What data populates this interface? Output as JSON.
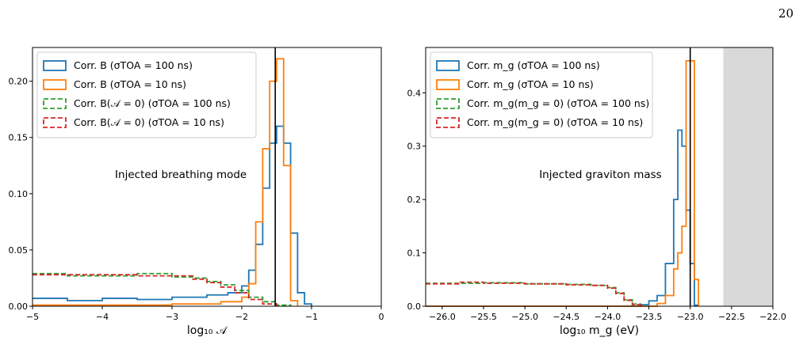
{
  "page_number": "20",
  "chart_data": [
    {
      "type": "histogram",
      "xlabel": "log₁₀ 𝒜",
      "xlim": [
        -5,
        0
      ],
      "ylim": [
        0,
        0.23
      ],
      "x_ticks": [
        "−5",
        "−4",
        "−3",
        "−2",
        "−1",
        "0"
      ],
      "y_ticks": [
        "0.00",
        "0.05",
        "0.10",
        "0.15",
        "0.20"
      ],
      "x_tick_values": [
        -5,
        -4,
        -3,
        -2,
        -1,
        0
      ],
      "y_tick_values": [
        0,
        0.05,
        0.1,
        0.15,
        0.2
      ],
      "annotation": "Injected breathing mode",
      "injected_value": -1.52,
      "legend_placement": "upper-left",
      "series": [
        {
          "name": "Corr. B (σTOA = 100 ns)",
          "color": "#1f77b4",
          "dash": "solid",
          "points": [
            [
              -5,
              0.007
            ],
            [
              -4.5,
              0.005
            ],
            [
              -4.0,
              0.007
            ],
            [
              -3.5,
              0.006
            ],
            [
              -3.0,
              0.008
            ],
            [
              -2.5,
              0.01
            ],
            [
              -2.2,
              0.012
            ],
            [
              -2.0,
              0.018
            ],
            [
              -1.9,
              0.032
            ],
            [
              -1.8,
              0.055
            ],
            [
              -1.7,
              0.105
            ],
            [
              -1.6,
              0.145
            ],
            [
              -1.5,
              0.16
            ],
            [
              -1.4,
              0.145
            ],
            [
              -1.3,
              0.065
            ],
            [
              -1.2,
              0.012
            ],
            [
              -1.1,
              0.002
            ],
            [
              -1.0,
              0.0
            ]
          ]
        },
        {
          "name": "Corr. B (σTOA = 10 ns)",
          "color": "#ff7f0e",
          "dash": "solid",
          "points": [
            [
              -5,
              0.001
            ],
            [
              -4.0,
              0.001
            ],
            [
              -3.0,
              0.002
            ],
            [
              -2.3,
              0.004
            ],
            [
              -2.0,
              0.008
            ],
            [
              -1.9,
              0.02
            ],
            [
              -1.8,
              0.075
            ],
            [
              -1.7,
              0.14
            ],
            [
              -1.6,
              0.2
            ],
            [
              -1.5,
              0.22
            ],
            [
              -1.4,
              0.125
            ],
            [
              -1.3,
              0.005
            ],
            [
              -1.2,
              0.0
            ]
          ]
        },
        {
          "name": "Corr. B(𝒜 = 0) (σTOA = 100 ns)",
          "color": "#2ca02c",
          "dash": "dashed",
          "points": [
            [
              -5,
              0.029
            ],
            [
              -4.5,
              0.027
            ],
            [
              -4.0,
              0.027
            ],
            [
              -3.5,
              0.029
            ],
            [
              -3.0,
              0.026
            ],
            [
              -2.7,
              0.025
            ],
            [
              -2.5,
              0.022
            ],
            [
              -2.3,
              0.019
            ],
            [
              -2.1,
              0.014
            ],
            [
              -1.9,
              0.008
            ],
            [
              -1.7,
              0.004
            ],
            [
              -1.5,
              0.001
            ],
            [
              -1.3,
              0.0
            ]
          ]
        },
        {
          "name": "Corr. B(𝒜 = 0) (σTOA = 10 ns)",
          "color": "#d62728",
          "dash": "dashed",
          "points": [
            [
              -5,
              0.028
            ],
            [
              -4.5,
              0.028
            ],
            [
              -4.0,
              0.028
            ],
            [
              -3.5,
              0.027
            ],
            [
              -3.0,
              0.027
            ],
            [
              -2.7,
              0.024
            ],
            [
              -2.5,
              0.021
            ],
            [
              -2.3,
              0.017
            ],
            [
              -2.1,
              0.012
            ],
            [
              -1.9,
              0.006
            ],
            [
              -1.7,
              0.002
            ],
            [
              -1.5,
              0.0
            ]
          ]
        }
      ]
    },
    {
      "type": "histogram",
      "xlabel": "log₁₀ m_g (eV)",
      "xlim": [
        -26.2,
        -22.0
      ],
      "ylim": [
        0,
        0.485
      ],
      "x_ticks": [
        "−26.0",
        "−25.5",
        "−25.0",
        "−24.5",
        "−24.0",
        "−23.5",
        "−23.0",
        "−22.5",
        "−22.0"
      ],
      "y_ticks": [
        "0.0",
        "0.1",
        "0.2",
        "0.3",
        "0.4"
      ],
      "x_tick_values": [
        -26.0,
        -25.5,
        -25.0,
        -24.5,
        -24.0,
        -23.5,
        -23.0,
        -22.5,
        -22.0
      ],
      "y_tick_values": [
        0,
        0.1,
        0.2,
        0.3,
        0.4
      ],
      "annotation": "Injected graviton mass",
      "injected_value": -23.0,
      "shaded_region": [
        -22.6,
        -22.0
      ],
      "legend_placement": "upper-left",
      "series": [
        {
          "name": "Corr. m_g (σTOA = 100 ns)",
          "color": "#1f77b4",
          "dash": "solid",
          "points": [
            [
              -26.2,
              0.0
            ],
            [
              -24.0,
              0.0
            ],
            [
              -23.6,
              0.003
            ],
            [
              -23.5,
              0.01
            ],
            [
              -23.4,
              0.02
            ],
            [
              -23.3,
              0.08
            ],
            [
              -23.2,
              0.2
            ],
            [
              -23.15,
              0.33
            ],
            [
              -23.1,
              0.3
            ],
            [
              -23.05,
              0.18
            ],
            [
              -23.0,
              0.08
            ],
            [
              -22.95,
              0.002
            ],
            [
              -22.9,
              0.0
            ]
          ]
        },
        {
          "name": "Corr. m_g (σTOA = 10 ns)",
          "color": "#ff7f0e",
          "dash": "solid",
          "points": [
            [
              -26.2,
              0.0
            ],
            [
              -23.6,
              0.0
            ],
            [
              -23.4,
              0.005
            ],
            [
              -23.3,
              0.02
            ],
            [
              -23.2,
              0.07
            ],
            [
              -23.15,
              0.1
            ],
            [
              -23.1,
              0.15
            ],
            [
              -23.05,
              0.46
            ],
            [
              -23.0,
              0.46
            ],
            [
              -22.95,
              0.05
            ],
            [
              -22.9,
              0.0
            ]
          ]
        },
        {
          "name": "Corr. m_g(m_g = 0) (σTOA = 100 ns)",
          "color": "#2ca02c",
          "dash": "dashed",
          "points": [
            [
              -26.2,
              0.043
            ],
            [
              -25.8,
              0.043
            ],
            [
              -25.5,
              0.044
            ],
            [
              -25.0,
              0.042
            ],
            [
              -24.5,
              0.041
            ],
            [
              -24.2,
              0.039
            ],
            [
              -24.0,
              0.035
            ],
            [
              -23.9,
              0.025
            ],
            [
              -23.8,
              0.012
            ],
            [
              -23.7,
              0.004
            ],
            [
              -23.6,
              0.0
            ]
          ]
        },
        {
          "name": "Corr. m_g(m_g = 0) (σTOA = 10 ns)",
          "color": "#d62728",
          "dash": "dashed",
          "points": [
            [
              -26.2,
              0.042
            ],
            [
              -25.8,
              0.045
            ],
            [
              -25.5,
              0.043
            ],
            [
              -25.0,
              0.042
            ],
            [
              -24.5,
              0.04
            ],
            [
              -24.2,
              0.039
            ],
            [
              -24.0,
              0.034
            ],
            [
              -23.9,
              0.024
            ],
            [
              -23.8,
              0.011
            ],
            [
              -23.7,
              0.003
            ],
            [
              -23.6,
              0.0
            ]
          ]
        }
      ]
    }
  ]
}
